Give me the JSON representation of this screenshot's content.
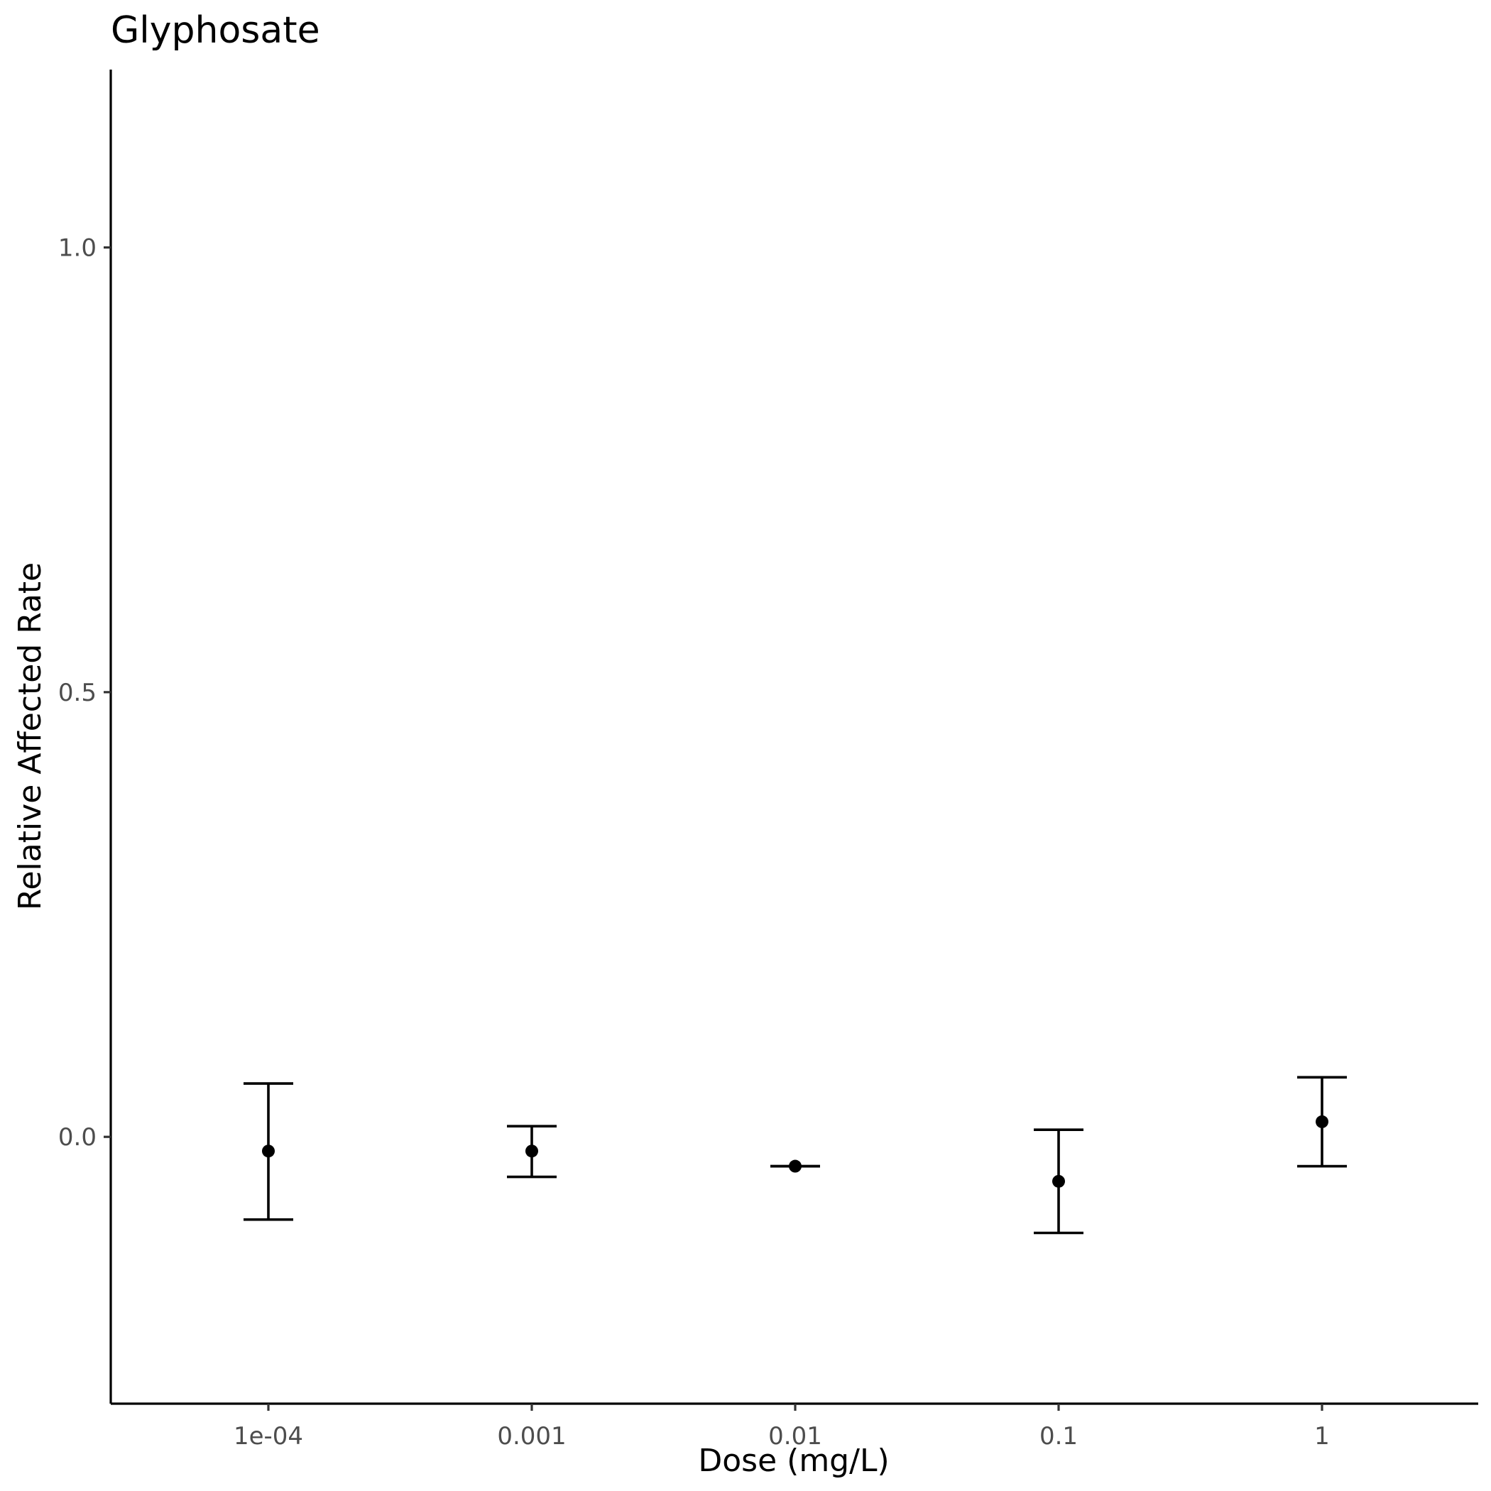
{
  "chart_data": {
    "type": "scatter",
    "title": "Glyphosate",
    "xlabel": "Dose (mg/L)",
    "ylabel": "Relative Affected Rate",
    "x_scale": "categorical (log10 dose)",
    "categories": [
      "1e-04",
      "0.001",
      "0.01",
      "0.1",
      "1"
    ],
    "y_ticks": [
      "0.0",
      "0.5",
      "1.0"
    ],
    "y_tick_values": [
      0.0,
      0.5,
      1.0
    ],
    "ylim": [
      -0.3,
      1.2
    ],
    "grid": false,
    "legend": "none",
    "series": [
      {
        "values": [
          -0.016,
          -0.016,
          -0.033,
          -0.05,
          0.017
        ],
        "error_low": [
          -0.093,
          -0.045,
          -0.033,
          -0.108,
          -0.033
        ],
        "error_high": [
          0.06,
          0.012,
          -0.033,
          0.008,
          0.067
        ]
      }
    ]
  },
  "colors": {
    "points": "#000000",
    "axis_text": "#4d4d4d",
    "background": "#ffffff"
  }
}
